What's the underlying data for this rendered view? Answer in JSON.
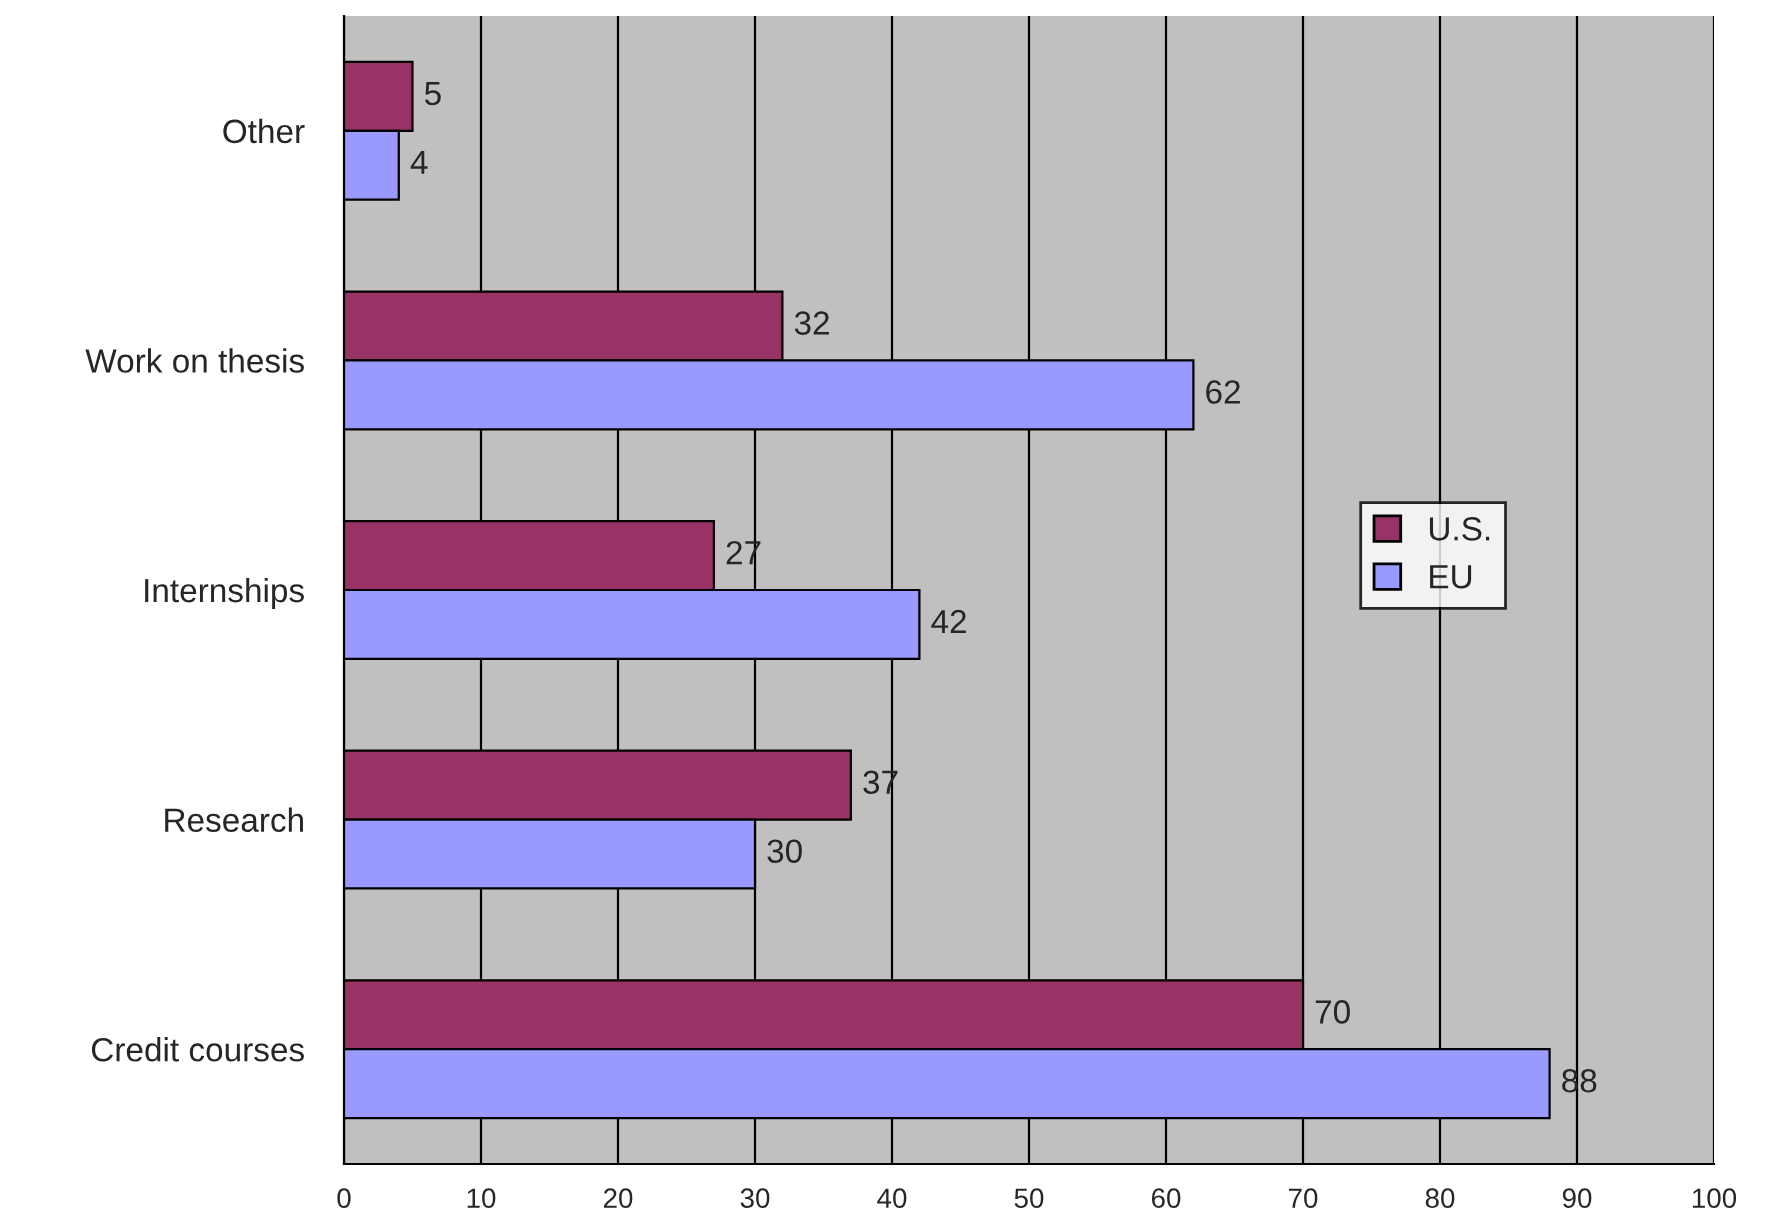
{
  "chart_data": {
    "type": "bar",
    "orientation": "horizontal",
    "categories": [
      "Other",
      "Work on thesis",
      "Internships",
      "Research",
      "Credit courses"
    ],
    "series": [
      {
        "name": "U.S.",
        "color": "#993366",
        "values": [
          5,
          32,
          27,
          37,
          70
        ]
      },
      {
        "name": "EU",
        "color": "#9999ff",
        "values": [
          4,
          62,
          42,
          30,
          88
        ]
      }
    ],
    "xlim": [
      0,
      100
    ],
    "xticks": [
      0,
      10,
      20,
      30,
      40,
      50,
      60,
      70,
      80,
      90,
      100
    ],
    "grid": "x",
    "legend": "right",
    "data_labels": true
  }
}
